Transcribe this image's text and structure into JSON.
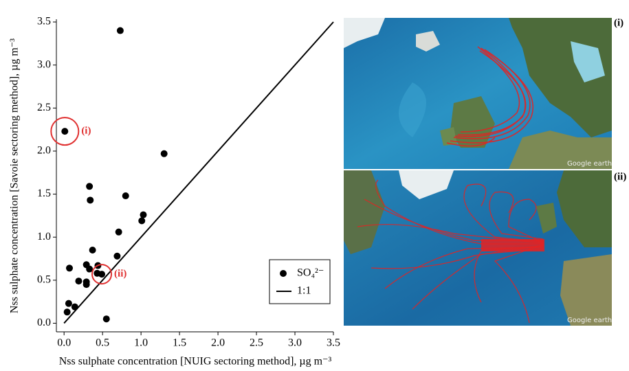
{
  "chart_data": {
    "type": "scatter",
    "xlabel": "Nss sulphate concentration [NUIG sectoring method], µg m⁻³",
    "ylabel": "Nss sulphate concentration [Savoie sectoring method], µg m⁻³",
    "xlim": [
      -0.1,
      3.5
    ],
    "ylim": [
      -0.1,
      3.5
    ],
    "xticks": [
      {
        "value": 0,
        "label": "0.0"
      },
      0.5,
      {
        "value": 1,
        "label": "1.0"
      },
      1.5,
      {
        "value": 2,
        "label": "2.0"
      },
      2.5,
      {
        "value": 3,
        "label": "3.0"
      },
      3.5
    ],
    "yticks": [
      {
        "value": 0,
        "label": "0.0"
      },
      0.5,
      {
        "value": 1,
        "label": "1.0"
      },
      1.5,
      {
        "value": 2,
        "label": "2.0"
      },
      2.5,
      {
        "value": 3,
        "label": "3.0"
      },
      3.5
    ],
    "series": [
      {
        "name": "SO₄²⁻",
        "color": "#000000",
        "x": [
          0.73,
          0.01,
          1.3,
          0.33,
          0.34,
          0.8,
          1.03,
          1.01,
          0.71,
          0.37,
          0.69,
          0.07,
          0.29,
          0.33,
          0.44,
          0.43,
          0.49,
          0.19,
          0.29,
          0.29,
          0.06,
          0.14,
          0.04,
          0.55
        ],
        "values": [
          3.4,
          2.23,
          1.97,
          1.59,
          1.43,
          1.48,
          1.26,
          1.19,
          1.06,
          0.85,
          0.78,
          0.64,
          0.68,
          0.63,
          0.67,
          0.58,
          0.57,
          0.49,
          0.48,
          0.45,
          0.23,
          0.19,
          0.13,
          0.05
        ]
      },
      {
        "name": "1:1",
        "color": "#000000",
        "x": [
          0,
          3.5
        ],
        "values": [
          0,
          3.5
        ]
      }
    ],
    "annotations": [
      "(i)",
      "(ii)"
    ],
    "annotation_color": "#e03030",
    "legend": "lower right"
  },
  "maps": [
    {
      "label": "(i)",
      "credit": "Google earth"
    },
    {
      "label": "(ii)",
      "credit": "Google earth"
    }
  ]
}
